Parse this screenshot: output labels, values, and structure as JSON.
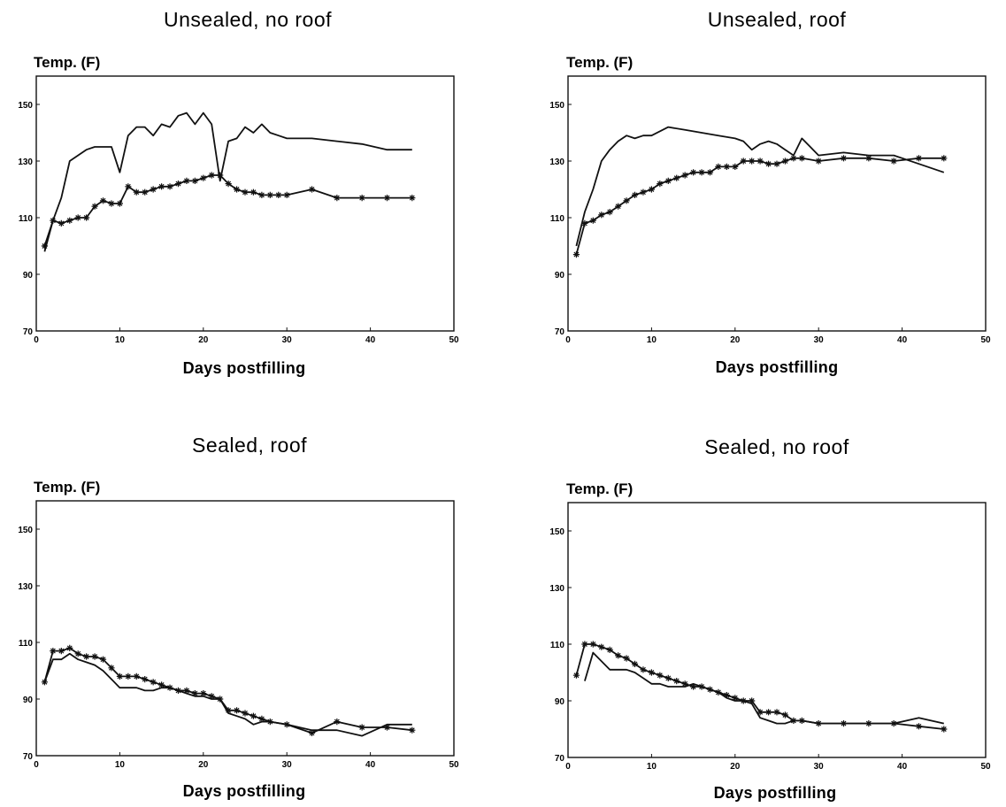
{
  "chart_data": [
    {
      "type": "line",
      "title": "Unsealed, no roof",
      "ylabel": "Temp. (F)",
      "xlabel": "Days postfilling",
      "xlim": [
        0,
        50
      ],
      "ylim": [
        70,
        160
      ],
      "xticks": [
        "0",
        "10",
        "20",
        "30",
        "40",
        "50"
      ],
      "yticks": [
        "70",
        "90",
        "110",
        "130",
        "150"
      ],
      "grid": false,
      "series": [
        {
          "marker": "none",
          "x": [
            1,
            2,
            3,
            4,
            5,
            6,
            7,
            8,
            9,
            10,
            11,
            12,
            13,
            14,
            15,
            16,
            17,
            18,
            19,
            20,
            21,
            22,
            23,
            24,
            25,
            26,
            27,
            28,
            29,
            30,
            33,
            36,
            39,
            42,
            45
          ],
          "y": [
            98,
            109,
            117,
            130,
            132,
            134,
            135,
            135,
            135,
            126,
            139,
            142,
            142,
            139,
            143,
            142,
            146,
            147,
            143,
            147,
            143,
            123,
            137,
            138,
            142,
            140,
            143,
            140,
            139,
            138,
            138,
            137,
            136,
            134,
            134
          ]
        },
        {
          "marker": "asterisk",
          "x": [
            1,
            2,
            3,
            4,
            5,
            6,
            7,
            8,
            9,
            10,
            11,
            12,
            13,
            14,
            15,
            16,
            17,
            18,
            19,
            20,
            21,
            22,
            23,
            24,
            25,
            26,
            27,
            28,
            29,
            30,
            33,
            36,
            39,
            42,
            45
          ],
          "y": [
            100,
            109,
            108,
            109,
            110,
            110,
            114,
            116,
            115,
            115,
            121,
            119,
            119,
            120,
            121,
            121,
            122,
            123,
            123,
            124,
            125,
            125,
            122,
            120,
            119,
            119,
            118,
            118,
            118,
            118,
            120,
            117,
            117,
            117,
            117
          ]
        }
      ]
    },
    {
      "type": "line",
      "title": "Unsealed, roof",
      "ylabel": "Temp. (F)",
      "xlabel": "Days postfilling",
      "xlim": [
        0,
        50
      ],
      "ylim": [
        70,
        160
      ],
      "xticks": [
        "0",
        "10",
        "20",
        "30",
        "40",
        "50"
      ],
      "yticks": [
        "70",
        "90",
        "110",
        "130",
        "150"
      ],
      "grid": false,
      "series": [
        {
          "marker": "none",
          "x": [
            1,
            2,
            3,
            4,
            5,
            6,
            7,
            8,
            9,
            10,
            12,
            14,
            16,
            18,
            20,
            21,
            22,
            23,
            24,
            25,
            26,
            27,
            28,
            29,
            30,
            33,
            36,
            39,
            42,
            45
          ],
          "y": [
            100,
            112,
            120,
            130,
            134,
            137,
            139,
            138,
            139,
            139,
            142,
            141,
            140,
            139,
            138,
            137,
            134,
            136,
            137,
            136,
            134,
            132,
            138,
            135,
            132,
            133,
            132,
            132,
            129,
            126
          ]
        },
        {
          "marker": "asterisk",
          "x": [
            1,
            2,
            3,
            4,
            5,
            6,
            7,
            8,
            9,
            10,
            11,
            12,
            13,
            14,
            15,
            16,
            17,
            18,
            19,
            20,
            21,
            22,
            23,
            24,
            25,
            26,
            27,
            28,
            30,
            33,
            36,
            39,
            42,
            45
          ],
          "y": [
            97,
            108,
            109,
            111,
            112,
            114,
            116,
            118,
            119,
            120,
            122,
            123,
            124,
            125,
            126,
            126,
            126,
            128,
            128,
            128,
            130,
            130,
            130,
            129,
            129,
            130,
            131,
            131,
            130,
            131,
            131,
            130,
            131,
            131
          ]
        }
      ]
    },
    {
      "type": "line",
      "title": "Sealed, roof",
      "ylabel": "Temp. (F)",
      "xlabel": "Days postfilling",
      "xlim": [
        0,
        50
      ],
      "ylim": [
        70,
        160
      ],
      "xticks": [
        "0",
        "10",
        "20",
        "30",
        "40",
        "50"
      ],
      "yticks": [
        "70",
        "90",
        "110",
        "130",
        "150"
      ],
      "grid": false,
      "series": [
        {
          "marker": "none",
          "x": [
            1,
            2,
            3,
            4,
            5,
            6,
            7,
            8,
            9,
            10,
            11,
            12,
            13,
            14,
            15,
            16,
            17,
            18,
            19,
            20,
            21,
            22,
            23,
            24,
            25,
            26,
            27,
            28,
            30,
            33,
            36,
            39,
            42,
            45
          ],
          "y": [
            96,
            104,
            104,
            106,
            104,
            103,
            102,
            100,
            97,
            94,
            94,
            94,
            93,
            93,
            94,
            94,
            93,
            92,
            91,
            91,
            90,
            90,
            85,
            84,
            83,
            81,
            82,
            82,
            81,
            79,
            79,
            77,
            81,
            81
          ]
        },
        {
          "marker": "asterisk",
          "x": [
            1,
            2,
            3,
            4,
            5,
            6,
            7,
            8,
            9,
            10,
            11,
            12,
            13,
            14,
            15,
            16,
            17,
            18,
            19,
            20,
            21,
            22,
            23,
            24,
            25,
            26,
            27,
            28,
            30,
            33,
            36,
            39,
            42,
            45
          ],
          "y": [
            96,
            107,
            107,
            108,
            106,
            105,
            105,
            104,
            101,
            98,
            98,
            98,
            97,
            96,
            95,
            94,
            93,
            93,
            92,
            92,
            91,
            90,
            86,
            86,
            85,
            84,
            83,
            82,
            81,
            78,
            82,
            80,
            80,
            79
          ]
        }
      ]
    },
    {
      "type": "line",
      "title": "Sealed, no roof",
      "ylabel": "Temp. (F)",
      "xlabel": "Days postfilling",
      "xlim": [
        0,
        50
      ],
      "ylim": [
        70,
        160
      ],
      "xticks": [
        "0",
        "10",
        "20",
        "30",
        "40",
        "50"
      ],
      "yticks": [
        "70",
        "90",
        "110",
        "130",
        "150"
      ],
      "grid": false,
      "series": [
        {
          "marker": "none",
          "x": [
            2,
            3,
            4,
            5,
            6,
            7,
            8,
            9,
            10,
            11,
            12,
            13,
            14,
            15,
            16,
            17,
            18,
            19,
            20,
            21,
            22,
            23,
            24,
            25,
            26,
            27,
            28,
            30,
            33,
            36,
            39,
            42,
            45
          ],
          "y": [
            97,
            107,
            104,
            101,
            101,
            101,
            100,
            98,
            96,
            96,
            95,
            95,
            95,
            96,
            95,
            94,
            93,
            91,
            90,
            90,
            89,
            84,
            83,
            82,
            82,
            83,
            83,
            82,
            82,
            82,
            82,
            84,
            82
          ]
        },
        {
          "marker": "asterisk",
          "x": [
            1,
            2,
            3,
            4,
            5,
            6,
            7,
            8,
            9,
            10,
            11,
            12,
            13,
            14,
            15,
            16,
            17,
            18,
            19,
            20,
            21,
            22,
            23,
            24,
            25,
            26,
            27,
            28,
            30,
            33,
            36,
            39,
            42,
            45
          ],
          "y": [
            99,
            110,
            110,
            109,
            108,
            106,
            105,
            103,
            101,
            100,
            99,
            98,
            97,
            96,
            95,
            95,
            94,
            93,
            92,
            91,
            90,
            90,
            86,
            86,
            86,
            85,
            83,
            83,
            82,
            82,
            82,
            82,
            81,
            80
          ]
        }
      ]
    }
  ]
}
